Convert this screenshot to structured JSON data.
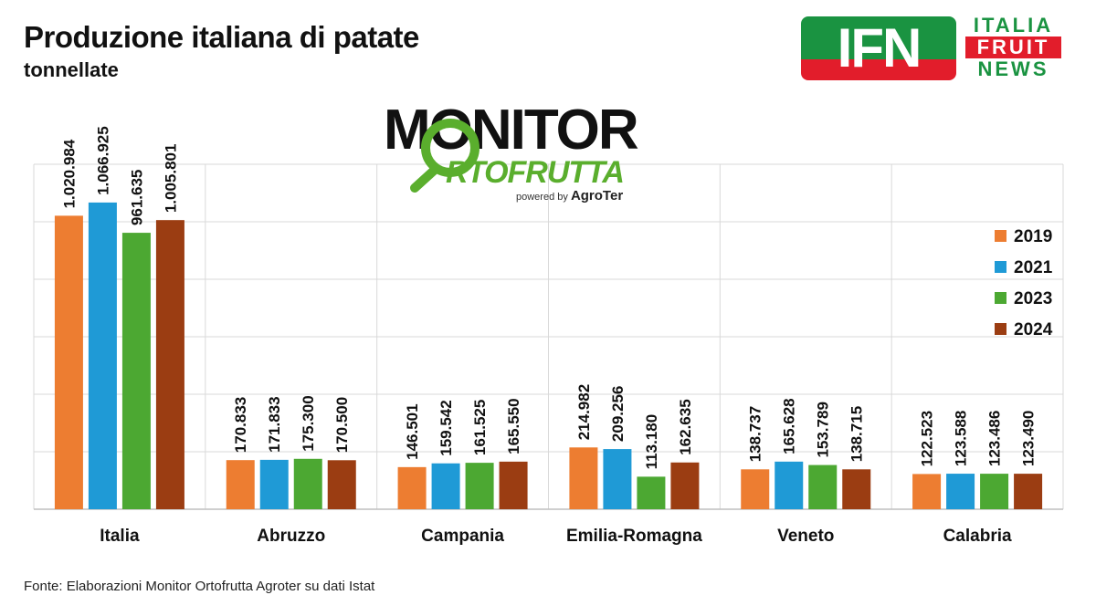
{
  "header": {
    "title": "Produzione italiana di patate",
    "subtitle": "tonnellate"
  },
  "logos": {
    "ifn": {
      "letters": "IFN",
      "line1": "ITALIA",
      "line2": "FRUIT",
      "line3": "NEWS"
    },
    "monitor": {
      "word": "MONITOR",
      "sub": "RTOFRUTTA",
      "powered": "powered by",
      "brand": "AgroTer"
    }
  },
  "footer": {
    "source": "Fonte: Elaborazioni Monitor Ortofrutta Agroter su dati Istat"
  },
  "colors": {
    "s2019": "#ed7d31",
    "s2021": "#1f9ad6",
    "s2023": "#4ca832",
    "s2024": "#9b3d12",
    "grid": "#d9d9d9"
  },
  "chart_data": {
    "type": "bar",
    "title": "Produzione italiana di patate",
    "ylabel": "tonnellate",
    "xlabel": "",
    "ylim": [
      0,
      1200000
    ],
    "grid": true,
    "legend": "right",
    "categories": [
      "Italia",
      "Abruzzo",
      "Campania",
      "Emilia-Romagna",
      "Veneto",
      "Calabria"
    ],
    "series": [
      {
        "name": "2019",
        "values": [
          1020984,
          170833,
          146501,
          214982,
          138737,
          122523
        ],
        "labels": [
          "1.020.984",
          "170.833",
          "146.501",
          "214.982",
          "138.737",
          "122.523"
        ]
      },
      {
        "name": "2021",
        "values": [
          1066925,
          171833,
          159542,
          209256,
          165628,
          123588
        ],
        "labels": [
          "1.066.925",
          "171.833",
          "159.542",
          "209.256",
          "165.628",
          "123.588"
        ]
      },
      {
        "name": "2023",
        "values": [
          961635,
          175300,
          161525,
          113180,
          153789,
          123486
        ],
        "labels": [
          "961.635",
          "175.300",
          "161.525",
          "113.180",
          "153.789",
          "123.486"
        ]
      },
      {
        "name": "2024",
        "values": [
          1005801,
          170500,
          165550,
          162635,
          138715,
          123490
        ],
        "labels": [
          "1.005.801",
          "170.500",
          "165.550",
          "162.635",
          "138.715",
          "123.490"
        ]
      }
    ]
  }
}
